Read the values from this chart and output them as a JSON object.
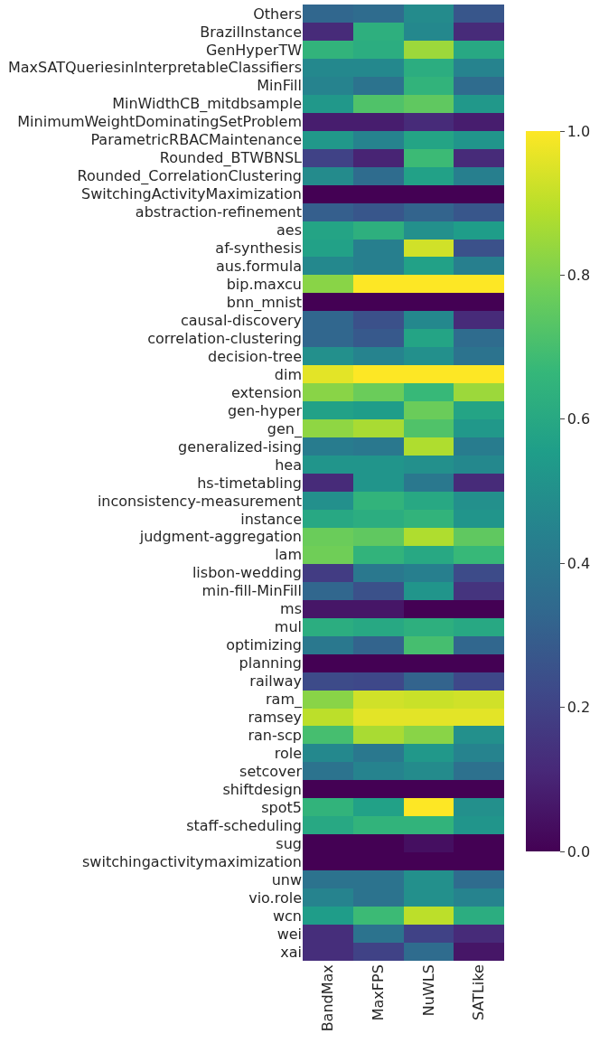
{
  "chart_data": {
    "type": "heatmap",
    "categories": [
      "BandMax",
      "MaxFPS",
      "NuWLS",
      "SATLike"
    ],
    "y_categories": [
      "Others",
      "BrazilInstance",
      "GenHyperTW",
      "MaxSATQueriesinInterpretableClassifiers",
      "MinFill",
      "MinWidthCB_mitdbsample",
      "MinimumWeightDominatingSetProblem",
      "ParametricRBACMaintenance",
      "Rounded_BTWBNSL",
      "Rounded_CorrelationClustering",
      "SwitchingActivityMaximization",
      "abstraction-refinement",
      "aes",
      "af-synthesis",
      "aus.formula",
      "bip.maxcu",
      "bnn_mnist",
      "causal-discovery",
      "correlation-clustering",
      "decision-tree",
      "dim",
      "extension",
      "gen-hyper",
      "gen_",
      "generalized-ising",
      "hea",
      "hs-timetabling",
      "inconsistency-measurement",
      "instance",
      "judgment-aggregation",
      "lam",
      "lisbon-wedding",
      "min-fill-MinFill",
      "ms",
      "mul",
      "optimizing",
      "planning",
      "railway",
      "ram_",
      "ramsey",
      "ran-scp",
      "role",
      "setcover",
      "shiftdesign",
      "spot5",
      "staff-scheduling",
      "sug",
      "switchingactivitymaximization",
      "unw",
      "vio.role",
      "wcn",
      "wei",
      "xai"
    ],
    "cells": [
      [
        0.33,
        0.35,
        0.48,
        0.27
      ],
      [
        0.12,
        0.63,
        0.47,
        0.12
      ],
      [
        0.65,
        0.62,
        0.85,
        0.6
      ],
      [
        0.47,
        0.47,
        0.62,
        0.45
      ],
      [
        0.45,
        0.38,
        0.65,
        0.35
      ],
      [
        0.53,
        0.72,
        0.75,
        0.53
      ],
      [
        0.08,
        0.08,
        0.12,
        0.08
      ],
      [
        0.53,
        0.45,
        0.58,
        0.52
      ],
      [
        0.2,
        0.1,
        0.68,
        0.12
      ],
      [
        0.48,
        0.35,
        0.57,
        0.43
      ],
      [
        0.0,
        0.0,
        0.0,
        0.0
      ],
      [
        0.3,
        0.27,
        0.32,
        0.27
      ],
      [
        0.58,
        0.63,
        0.5,
        0.55
      ],
      [
        0.57,
        0.43,
        0.93,
        0.25
      ],
      [
        0.47,
        0.43,
        0.57,
        0.43
      ],
      [
        0.82,
        1.0,
        1.0,
        1.0
      ],
      [
        0.0,
        0.0,
        0.0,
        0.0
      ],
      [
        0.33,
        0.25,
        0.47,
        0.12
      ],
      [
        0.33,
        0.28,
        0.58,
        0.35
      ],
      [
        0.5,
        0.45,
        0.5,
        0.38
      ],
      [
        0.96,
        1.0,
        1.0,
        1.0
      ],
      [
        0.82,
        0.77,
        0.67,
        0.85
      ],
      [
        0.57,
        0.55,
        0.77,
        0.58
      ],
      [
        0.83,
        0.87,
        0.72,
        0.53
      ],
      [
        0.42,
        0.4,
        0.88,
        0.42
      ],
      [
        0.52,
        0.52,
        0.5,
        0.47
      ],
      [
        0.12,
        0.52,
        0.4,
        0.12
      ],
      [
        0.5,
        0.65,
        0.6,
        0.5
      ],
      [
        0.6,
        0.62,
        0.65,
        0.52
      ],
      [
        0.77,
        0.75,
        0.88,
        0.75
      ],
      [
        0.78,
        0.65,
        0.6,
        0.67
      ],
      [
        0.18,
        0.4,
        0.43,
        0.23
      ],
      [
        0.33,
        0.25,
        0.52,
        0.15
      ],
      [
        0.06,
        0.06,
        0.0,
        0.0
      ],
      [
        0.62,
        0.6,
        0.63,
        0.6
      ],
      [
        0.4,
        0.32,
        0.7,
        0.33
      ],
      [
        0.0,
        0.0,
        0.0,
        0.0
      ],
      [
        0.23,
        0.22,
        0.32,
        0.22
      ],
      [
        0.82,
        0.93,
        0.92,
        0.93
      ],
      [
        0.9,
        0.96,
        0.96,
        0.96
      ],
      [
        0.7,
        0.87,
        0.82,
        0.5
      ],
      [
        0.47,
        0.4,
        0.53,
        0.45
      ],
      [
        0.38,
        0.45,
        0.48,
        0.37
      ],
      [
        0.0,
        0.0,
        0.0,
        0.0
      ],
      [
        0.65,
        0.57,
        1.0,
        0.5
      ],
      [
        0.6,
        0.65,
        0.65,
        0.52
      ],
      [
        0.0,
        0.0,
        0.04,
        0.0
      ],
      [
        0.0,
        0.0,
        0.0,
        0.0
      ],
      [
        0.38,
        0.38,
        0.5,
        0.35
      ],
      [
        0.45,
        0.38,
        0.5,
        0.45
      ],
      [
        0.55,
        0.68,
        0.9,
        0.62
      ],
      [
        0.13,
        0.38,
        0.2,
        0.12
      ],
      [
        0.13,
        0.2,
        0.35,
        0.06
      ]
    ],
    "clim": [
      0,
      1
    ],
    "cticks": [
      {
        "value": 0,
        "label": "0.0"
      },
      {
        "value": 0.2,
        "label": "0.2"
      },
      {
        "value": 0.4,
        "label": "0.4"
      },
      {
        "value": 0.6,
        "label": "0.6"
      },
      {
        "value": 0.8,
        "label": "0.8"
      },
      {
        "value": 1,
        "label": "1.0"
      }
    ]
  }
}
